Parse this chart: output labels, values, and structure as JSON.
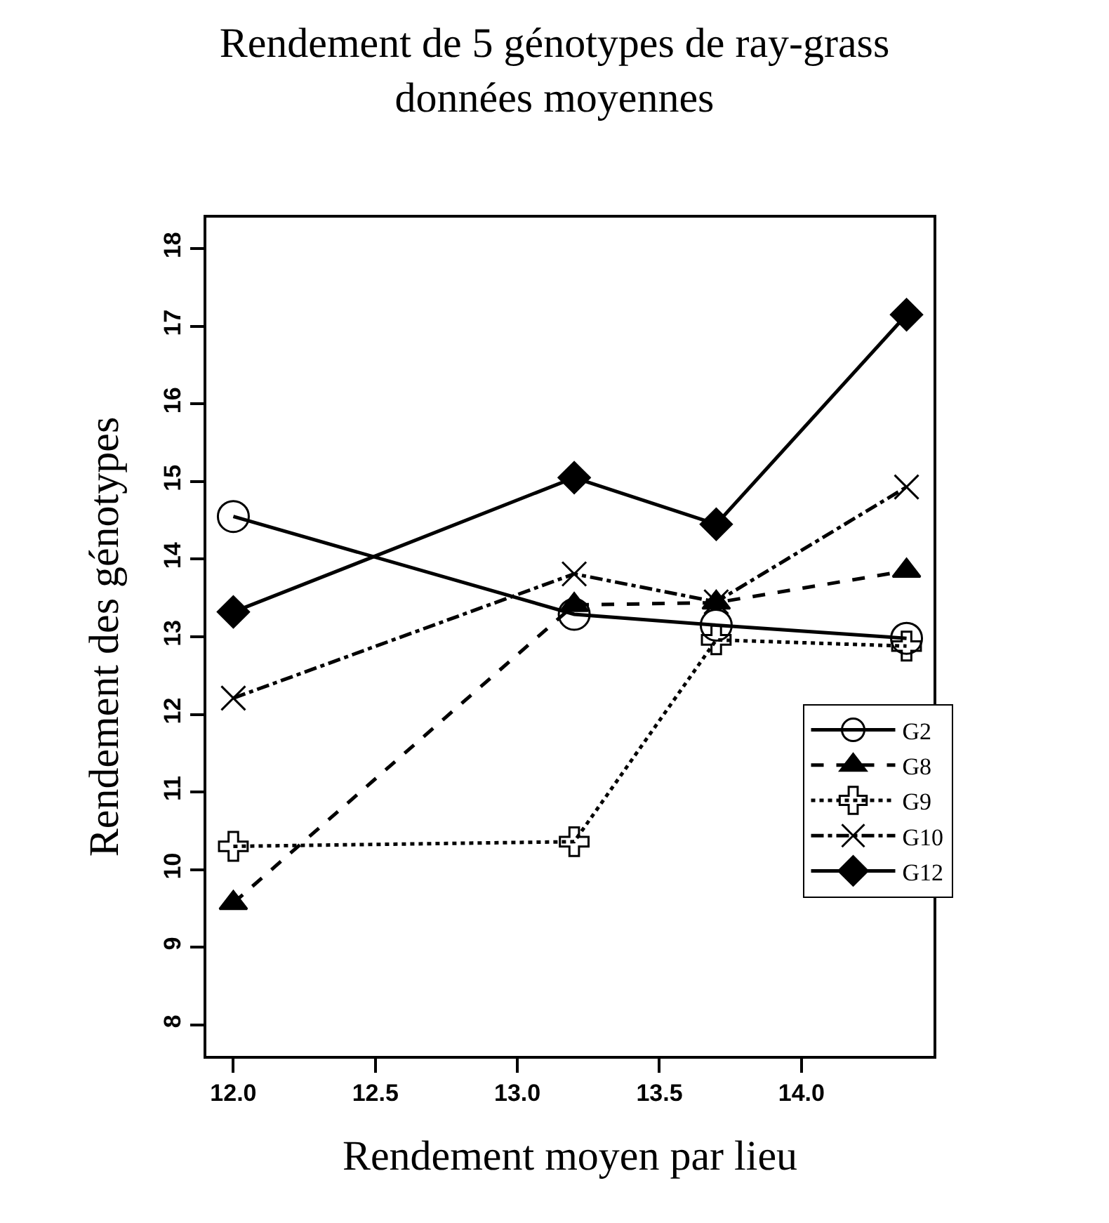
{
  "chart_data": {
    "type": "line",
    "title": "Rendement de 5 génotypes de ray-grass\ndonnées moyennes",
    "xlabel": "Rendement moyen par lieu",
    "ylabel": "Rendement des génotypes",
    "x": [
      12.0,
      13.2,
      13.7,
      14.37
    ],
    "series": [
      {
        "name": "G2",
        "color": "#000000",
        "marker": "circle",
        "line_style": "solid",
        "values": [
          14.55,
          13.29,
          13.15,
          12.98
        ]
      },
      {
        "name": "G8",
        "color": "#000000",
        "marker": "triangle",
        "line_style": "dashed",
        "values": [
          9.57,
          13.41,
          13.44,
          13.85
        ]
      },
      {
        "name": "G9",
        "color": "#000000",
        "marker": "cross",
        "line_style": "dotted",
        "values": [
          10.3,
          10.36,
          12.96,
          12.88
        ]
      },
      {
        "name": "G10",
        "color": "#000000",
        "marker": "x",
        "line_style": "dashdot",
        "values": [
          12.21,
          13.81,
          13.45,
          14.93
        ]
      },
      {
        "name": "G12",
        "color": "#000000",
        "marker": "diamond",
        "line_style": "solid",
        "values": [
          13.32,
          15.05,
          14.45,
          17.15
        ]
      }
    ],
    "xlim": [
      11.905,
      14.465
    ],
    "xticks": [
      {
        "value": 12,
        "label": "12.0"
      },
      12.5,
      {
        "value": 13,
        "label": "13.0"
      },
      13.5,
      {
        "value": 14,
        "label": "14.0"
      }
    ],
    "ylim": [
      7.6,
      18.4
    ],
    "yticks": [
      8,
      9,
      10,
      11,
      12,
      13,
      14,
      15,
      16,
      17,
      18
    ],
    "legend": "bottom right"
  }
}
